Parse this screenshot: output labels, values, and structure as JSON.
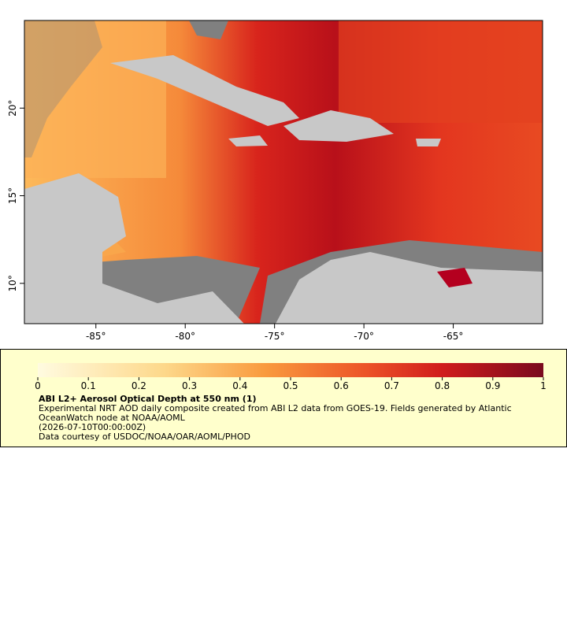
{
  "map": {
    "xlim": [
      -89,
      -60
    ],
    "ylim": [
      7.7,
      25
    ],
    "xticks": [
      {
        "value": -85,
        "label": "-85°"
      },
      {
        "value": -80,
        "label": "-80°"
      },
      {
        "value": -75,
        "label": "-75°"
      },
      {
        "value": -70,
        "label": "-70°"
      },
      {
        "value": -65,
        "label": "-65°"
      }
    ],
    "yticks": [
      {
        "value": 10,
        "label": "10°"
      },
      {
        "value": 15,
        "label": "15°"
      },
      {
        "value": 20,
        "label": "20°"
      }
    ]
  },
  "colorbar": {
    "range": [
      0,
      1
    ],
    "ticks": [
      0,
      0.1,
      0.2,
      0.3,
      0.4,
      0.5,
      0.6,
      0.7,
      0.8,
      0.9,
      1
    ]
  },
  "legend": {
    "title": "ABI L2+ Aerosol Optical Depth at 550 nm (1)",
    "lines": [
      "Experimental NRT AOD daily composite created from ABI L2 data from GOES-19. Fields generated by Atlantic",
      "OceanWatch node at NOAA/AOML",
      "(2026-07-10T00:00:00Z)",
      "Data courtesy of USDOC/NOAA/OAR/AOML/PHOD"
    ]
  }
}
